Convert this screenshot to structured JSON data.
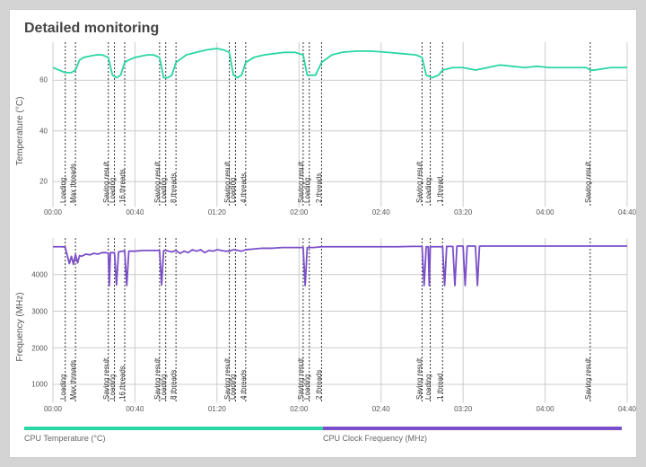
{
  "title": "Detailed monitoring",
  "x": {
    "min": 0,
    "max": 280,
    "ticks": [
      0,
      40,
      80,
      120,
      160,
      200,
      240,
      280
    ],
    "tick_labels": [
      "00:00",
      "00:40",
      "01:20",
      "02:00",
      "02:40",
      "03:20",
      "04:00",
      "04:40"
    ]
  },
  "markers": [
    {
      "x": 6,
      "text": "Loading"
    },
    {
      "x": 11,
      "text": "Max threads"
    },
    {
      "x": 27,
      "text": "Saving result"
    },
    {
      "x": 30,
      "text": "Loading"
    },
    {
      "x": 35,
      "text": "16 threads"
    },
    {
      "x": 52,
      "text": "Saving result"
    },
    {
      "x": 55,
      "text": "Loading"
    },
    {
      "x": 60,
      "text": "8 threads"
    },
    {
      "x": 86,
      "text": "Saving result"
    },
    {
      "x": 89,
      "text": "Loading"
    },
    {
      "x": 94,
      "text": "4 threads"
    },
    {
      "x": 122,
      "text": "Saving result"
    },
    {
      "x": 125,
      "text": "Loading"
    },
    {
      "x": 131,
      "text": "2 threads"
    },
    {
      "x": 180,
      "text": "Saving result"
    },
    {
      "x": 184,
      "text": "Loading"
    },
    {
      "x": 190,
      "text": "1 thread"
    },
    {
      "x": 262,
      "text": "Saving result"
    }
  ],
  "temp_chart": {
    "ylabel": "Temperature (°C)",
    "ylim": [
      10,
      75
    ],
    "yticks": [
      20,
      40,
      60
    ],
    "color": "#2ad6a4",
    "line_width": 1.8,
    "data": [
      [
        0,
        65
      ],
      [
        3,
        64
      ],
      [
        6,
        63
      ],
      [
        9,
        63
      ],
      [
        11,
        64
      ],
      [
        13,
        68
      ],
      [
        15,
        69
      ],
      [
        18,
        69.5
      ],
      [
        21,
        70
      ],
      [
        24,
        70
      ],
      [
        27,
        69
      ],
      [
        29,
        62
      ],
      [
        31,
        61
      ],
      [
        33,
        62
      ],
      [
        35,
        67
      ],
      [
        37,
        68
      ],
      [
        40,
        69
      ],
      [
        43,
        69.5
      ],
      [
        46,
        70
      ],
      [
        49,
        70
      ],
      [
        52,
        69
      ],
      [
        54,
        61
      ],
      [
        56,
        61
      ],
      [
        58,
        62
      ],
      [
        60,
        67
      ],
      [
        65,
        70
      ],
      [
        70,
        71
      ],
      [
        75,
        72
      ],
      [
        80,
        72.5
      ],
      [
        83,
        72
      ],
      [
        86,
        71
      ],
      [
        88,
        62
      ],
      [
        90,
        61
      ],
      [
        92,
        62
      ],
      [
        94,
        67
      ],
      [
        98,
        69
      ],
      [
        103,
        70
      ],
      [
        108,
        70.5
      ],
      [
        113,
        71
      ],
      [
        118,
        71
      ],
      [
        122,
        70
      ],
      [
        124,
        62
      ],
      [
        126,
        62
      ],
      [
        128,
        62
      ],
      [
        131,
        67
      ],
      [
        136,
        70
      ],
      [
        141,
        71
      ],
      [
        148,
        71.5
      ],
      [
        155,
        71.5
      ],
      [
        163,
        71
      ],
      [
        170,
        70.5
      ],
      [
        177,
        70
      ],
      [
        180,
        69
      ],
      [
        182,
        62
      ],
      [
        185,
        61
      ],
      [
        188,
        62
      ],
      [
        190,
        64
      ],
      [
        195,
        65
      ],
      [
        200,
        65
      ],
      [
        206,
        64
      ],
      [
        212,
        65
      ],
      [
        218,
        66
      ],
      [
        224,
        65.5
      ],
      [
        230,
        65
      ],
      [
        236,
        65.5
      ],
      [
        242,
        65
      ],
      [
        248,
        65
      ],
      [
        254,
        65
      ],
      [
        260,
        65
      ],
      [
        262,
        64
      ],
      [
        264,
        64
      ],
      [
        268,
        64.5
      ],
      [
        272,
        65
      ],
      [
        276,
        65
      ],
      [
        280,
        65
      ]
    ]
  },
  "freq_chart": {
    "ylabel": "Frequency (MHz)",
    "ylim": [
      500,
      5000
    ],
    "yticks": [
      1000,
      2000,
      3000,
      4000
    ],
    "color": "#7b4fc9",
    "line_width": 1.8,
    "data": [
      [
        0,
        4760
      ],
      [
        3,
        4760
      ],
      [
        5,
        4760
      ],
      [
        6,
        4740
      ],
      [
        8,
        4300
      ],
      [
        9,
        4500
      ],
      [
        10,
        4280
      ],
      [
        11,
        4550
      ],
      [
        12,
        4320
      ],
      [
        13,
        4520
      ],
      [
        14,
        4500
      ],
      [
        16,
        4560
      ],
      [
        18,
        4540
      ],
      [
        20,
        4580
      ],
      [
        22,
        4560
      ],
      [
        24,
        4600
      ],
      [
        26,
        4600
      ],
      [
        27,
        4580
      ],
      [
        27.5,
        3700
      ],
      [
        28,
        4600
      ],
      [
        29,
        4600
      ],
      [
        30,
        4600
      ],
      [
        31,
        3720
      ],
      [
        32,
        4620
      ],
      [
        34,
        4640
      ],
      [
        35,
        4640
      ],
      [
        36,
        3700
      ],
      [
        37,
        4640
      ],
      [
        40,
        4640
      ],
      [
        44,
        4660
      ],
      [
        48,
        4660
      ],
      [
        52,
        4660
      ],
      [
        53,
        3720
      ],
      [
        54,
        4660
      ],
      [
        55,
        4660
      ],
      [
        58,
        4620
      ],
      [
        60,
        4660
      ],
      [
        62,
        4580
      ],
      [
        64,
        4640
      ],
      [
        66,
        4600
      ],
      [
        68,
        4680
      ],
      [
        70,
        4640
      ],
      [
        72,
        4680
      ],
      [
        74,
        4600
      ],
      [
        76,
        4660
      ],
      [
        78,
        4640
      ],
      [
        80,
        4680
      ],
      [
        82,
        4660
      ],
      [
        84,
        4640
      ],
      [
        86,
        4640
      ],
      [
        88,
        4680
      ],
      [
        90,
        4660
      ],
      [
        92,
        4640
      ],
      [
        94,
        4680
      ],
      [
        98,
        4700
      ],
      [
        102,
        4720
      ],
      [
        107,
        4720
      ],
      [
        112,
        4740
      ],
      [
        117,
        4740
      ],
      [
        122,
        4740
      ],
      [
        123,
        3700
      ],
      [
        124,
        4740
      ],
      [
        125,
        4740
      ],
      [
        127,
        4740
      ],
      [
        131,
        4760
      ],
      [
        138,
        4760
      ],
      [
        145,
        4760
      ],
      [
        152,
        4760
      ],
      [
        160,
        4760
      ],
      [
        168,
        4760
      ],
      [
        175,
        4770
      ],
      [
        180,
        4770
      ],
      [
        181,
        3700
      ],
      [
        182,
        4760
      ],
      [
        183,
        4760
      ],
      [
        183.5,
        3700
      ],
      [
        184,
        4760
      ],
      [
        186,
        4760
      ],
      [
        190,
        4760
      ],
      [
        191,
        3700
      ],
      [
        192,
        4770
      ],
      [
        195,
        4770
      ],
      [
        196,
        3700
      ],
      [
        197,
        4780
      ],
      [
        200,
        4780
      ],
      [
        201,
        3700
      ],
      [
        202,
        4780
      ],
      [
        206,
        4780
      ],
      [
        207,
        3700
      ],
      [
        208,
        4780
      ],
      [
        215,
        4780
      ],
      [
        225,
        4780
      ],
      [
        235,
        4780
      ],
      [
        245,
        4780
      ],
      [
        255,
        4780
      ],
      [
        260,
        4780
      ],
      [
        262,
        4780
      ],
      [
        266,
        4780
      ],
      [
        272,
        4780
      ],
      [
        280,
        4780
      ]
    ]
  },
  "legend": {
    "seg1": {
      "color": "#2ad6a4",
      "label": "CPU Temperature (°C)",
      "from": 0,
      "to": 0.5
    },
    "seg2": {
      "color": "#7b4fc9",
      "label": "CPU Clock Frequency (MHz)",
      "from": 0.5,
      "to": 1.0
    }
  },
  "style": {
    "grid_color": "#cccccc",
    "marker_line": "2,2",
    "tick_font_size": 8,
    "label_font_size": 10,
    "title_color": "#444444",
    "background": "#ffffff"
  }
}
